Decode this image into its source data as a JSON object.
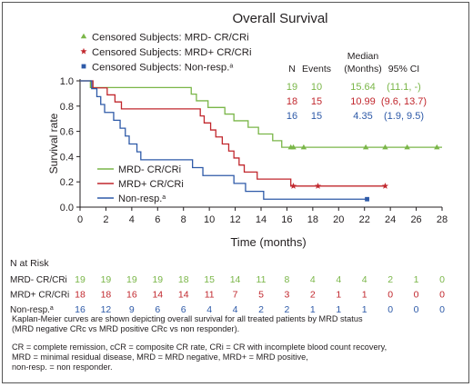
{
  "colors": {
    "mrd_neg": "#7ab648",
    "mrd_pos": "#c1272d",
    "non_resp": "#2e5aa8",
    "text": "#231f20"
  },
  "legend_top": [
    {
      "id": "mrd_neg",
      "label": "Censored Subjects: MRD- CR/CRi",
      "marker": "triangle"
    },
    {
      "id": "mrd_pos",
      "label": "Censored Subjects: MRD+ CR/CRi",
      "marker": "star"
    },
    {
      "id": "non_resp",
      "label": "Censored Subjects: Non-resp.",
      "sup": "a",
      "marker": "square"
    }
  ],
  "legend_lines": [
    {
      "id": "mrd_neg",
      "label": "MRD- CR/CRi"
    },
    {
      "id": "mrd_pos",
      "label": "MRD+ CR/CRi"
    },
    {
      "id": "non_resp",
      "label": "Non-resp.",
      "sup": "a"
    }
  ],
  "summary_table": {
    "headers": {
      "n": "N",
      "events": "Events",
      "median_top": "Median",
      "median_bottom": "(Months)",
      "ci": "95% CI"
    },
    "rows": [
      {
        "id": "mrd_neg",
        "n": "19",
        "events": "10",
        "median": "15.64",
        "ci": "(11.1, -)"
      },
      {
        "id": "mrd_pos",
        "n": "18",
        "events": "15",
        "median": "10.99",
        "ci": "(9.6, 13.7)"
      },
      {
        "id": "non_resp",
        "n": "16",
        "events": "15",
        "median": "4.35",
        "ci": "(1.9, 9.5)"
      }
    ]
  },
  "risk_table": {
    "title": "N at Risk",
    "rows": [
      {
        "id": "mrd_neg",
        "label": "MRD- CR/CRi",
        "counts": [
          19,
          19,
          19,
          19,
          18,
          15,
          14,
          11,
          8,
          4,
          4,
          4,
          2,
          1,
          0
        ]
      },
      {
        "id": "mrd_pos",
        "label": "MRD+ CR/CRi",
        "counts": [
          18,
          18,
          16,
          14,
          14,
          11,
          7,
          5,
          3,
          2,
          1,
          1,
          0,
          0,
          0
        ]
      },
      {
        "id": "non_resp",
        "label": "Non-resp.",
        "sup": "a",
        "counts": [
          16,
          12,
          9,
          6,
          6,
          4,
          4,
          2,
          2,
          1,
          1,
          1,
          0,
          0,
          0
        ]
      }
    ]
  },
  "footnote": {
    "line1": "Kaplan-Meier curves are shown depicting overall survival for all treated patients by MRD status",
    "line2": "(MRD negative CRc vs MRD positive CRc vs non responder).",
    "line3": "CR = complete remission, cCR = composite CR rate, CRi = CR with incomplete blood count recovery,",
    "line4": "MRD = minimal residual disease, MRD = MRD negative, MRD+ = MRD positive,",
    "line5": "non-resp. = non responder."
  },
  "chart_data": {
    "type": "line",
    "title": "Overall Survival",
    "xlabel": "Time (months)",
    "ylabel": "Survival rate",
    "xlim": [
      0,
      28
    ],
    "ylim": [
      0,
      1.0
    ],
    "xticks": [
      0,
      2,
      4,
      6,
      8,
      10,
      12,
      14,
      16,
      18,
      20,
      22,
      24,
      26,
      28
    ],
    "yticks": [
      0.0,
      0.2,
      0.4,
      0.6,
      0.8,
      1.0
    ],
    "grid": false,
    "series": [
      {
        "id": "mrd_neg",
        "name": "MRD- CR/CRi",
        "points": [
          [
            0,
            1.0
          ],
          [
            0.8,
            1.0
          ],
          [
            0.8,
            0.947
          ],
          [
            8.6,
            0.947
          ],
          [
            8.6,
            0.895
          ],
          [
            9.0,
            0.895
          ],
          [
            9.0,
            0.842
          ],
          [
            9.9,
            0.842
          ],
          [
            9.9,
            0.789
          ],
          [
            11.2,
            0.789
          ],
          [
            11.2,
            0.737
          ],
          [
            11.9,
            0.737
          ],
          [
            11.9,
            0.684
          ],
          [
            13.0,
            0.684
          ],
          [
            13.0,
            0.632
          ],
          [
            13.8,
            0.632
          ],
          [
            13.8,
            0.579
          ],
          [
            14.9,
            0.579
          ],
          [
            14.9,
            0.526
          ],
          [
            15.6,
            0.526
          ],
          [
            15.6,
            0.474
          ],
          [
            28.0,
            0.474
          ]
        ],
        "censored": [
          16.3,
          16.5,
          17.3,
          22.1,
          23.6,
          25.3,
          27.6
        ]
      },
      {
        "id": "mrd_pos",
        "name": "MRD+ CR/CRi",
        "points": [
          [
            0,
            1.0
          ],
          [
            1.0,
            1.0
          ],
          [
            1.0,
            0.944
          ],
          [
            2.1,
            0.944
          ],
          [
            2.1,
            0.889
          ],
          [
            2.7,
            0.889
          ],
          [
            2.7,
            0.833
          ],
          [
            3.2,
            0.833
          ],
          [
            3.2,
            0.778
          ],
          [
            9.3,
            0.778
          ],
          [
            9.3,
            0.722
          ],
          [
            9.6,
            0.722
          ],
          [
            9.6,
            0.667
          ],
          [
            10.1,
            0.667
          ],
          [
            10.1,
            0.611
          ],
          [
            10.5,
            0.611
          ],
          [
            10.5,
            0.556
          ],
          [
            11.0,
            0.556
          ],
          [
            11.0,
            0.5
          ],
          [
            11.5,
            0.5
          ],
          [
            11.5,
            0.444
          ],
          [
            11.9,
            0.444
          ],
          [
            11.9,
            0.389
          ],
          [
            12.3,
            0.389
          ],
          [
            12.3,
            0.333
          ],
          [
            12.7,
            0.333
          ],
          [
            12.7,
            0.278
          ],
          [
            13.7,
            0.278
          ],
          [
            13.7,
            0.222
          ],
          [
            16.3,
            0.222
          ],
          [
            16.3,
            0.167
          ],
          [
            23.7,
            0.167
          ]
        ],
        "censored": [
          16.5,
          18.4,
          23.6
        ]
      },
      {
        "id": "non_resp",
        "name": "Non-resp.",
        "points": [
          [
            0,
            1.0
          ],
          [
            0.9,
            1.0
          ],
          [
            0.9,
            0.938
          ],
          [
            1.3,
            0.938
          ],
          [
            1.3,
            0.875
          ],
          [
            1.6,
            0.875
          ],
          [
            1.6,
            0.813
          ],
          [
            1.9,
            0.813
          ],
          [
            1.9,
            0.75
          ],
          [
            2.6,
            0.75
          ],
          [
            2.6,
            0.688
          ],
          [
            3.1,
            0.688
          ],
          [
            3.1,
            0.625
          ],
          [
            3.5,
            0.625
          ],
          [
            3.5,
            0.563
          ],
          [
            3.8,
            0.563
          ],
          [
            3.8,
            0.5
          ],
          [
            4.4,
            0.5
          ],
          [
            4.4,
            0.438
          ],
          [
            4.7,
            0.438
          ],
          [
            4.7,
            0.375
          ],
          [
            8.7,
            0.375
          ],
          [
            8.7,
            0.313
          ],
          [
            9.5,
            0.313
          ],
          [
            9.5,
            0.25
          ],
          [
            11.9,
            0.25
          ],
          [
            11.9,
            0.188
          ],
          [
            12.8,
            0.188
          ],
          [
            12.8,
            0.125
          ],
          [
            14.2,
            0.125
          ],
          [
            14.2,
            0.063
          ],
          [
            22.2,
            0.063
          ]
        ],
        "censored": [
          22.2
        ]
      }
    ]
  }
}
